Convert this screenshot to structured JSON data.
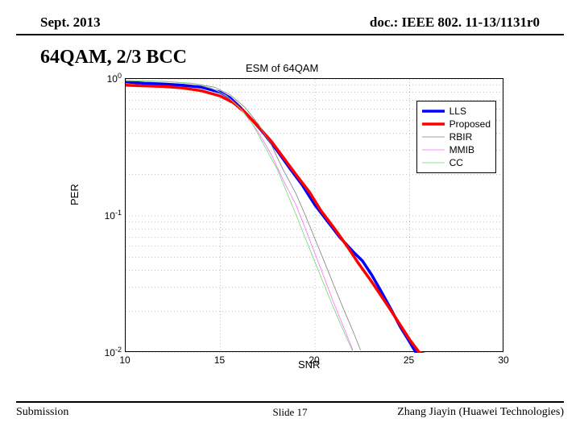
{
  "header": {
    "left": "Sept. 2013",
    "right": "doc.: IEEE 802. 11-13/1131r0"
  },
  "title": "64QAM, 2/3 BCC",
  "chart": {
    "type": "line",
    "title": "ESM of 64QAM",
    "xlabel": "SNR",
    "ylabel": "PER",
    "xlim": [
      10,
      30
    ],
    "ylim_exp": [
      -2,
      0
    ],
    "xticks": [
      10,
      15,
      20,
      25,
      30
    ],
    "ytick_exp": [
      0,
      -1,
      -2
    ],
    "background_color": "#ffffff",
    "grid_color": "#000000",
    "series": [
      {
        "name": "LLS",
        "color": "#0000ff",
        "width": 3.5,
        "data": [
          [
            10,
            0.95
          ],
          [
            11,
            0.93
          ],
          [
            12,
            0.92
          ],
          [
            13,
            0.9
          ],
          [
            14,
            0.87
          ],
          [
            15,
            0.8
          ],
          [
            15.5,
            0.73
          ],
          [
            16,
            0.63
          ],
          [
            16.7,
            0.5
          ],
          [
            17.3,
            0.4
          ],
          [
            18,
            0.3
          ],
          [
            18.7,
            0.22
          ],
          [
            19.3,
            0.17
          ],
          [
            20,
            0.12
          ],
          [
            20.7,
            0.09
          ],
          [
            21.3,
            0.07
          ],
          [
            22,
            0.055
          ],
          [
            22.5,
            0.047
          ],
          [
            23,
            0.037
          ],
          [
            23.5,
            0.028
          ],
          [
            24,
            0.021
          ],
          [
            24.5,
            0.0155
          ],
          [
            25,
            0.012
          ],
          [
            25.3,
            0.0102
          ],
          [
            25.7,
            0.0095
          ]
        ]
      },
      {
        "name": "Proposed",
        "color": "#ff0000",
        "width": 3.5,
        "data": [
          [
            10,
            0.9
          ],
          [
            11,
            0.89
          ],
          [
            12,
            0.88
          ],
          [
            13,
            0.86
          ],
          [
            14,
            0.82
          ],
          [
            15,
            0.75
          ],
          [
            15.7,
            0.67
          ],
          [
            16.3,
            0.57
          ],
          [
            17,
            0.45
          ],
          [
            17.7,
            0.35
          ],
          [
            18.3,
            0.27
          ],
          [
            19,
            0.2
          ],
          [
            19.7,
            0.15
          ],
          [
            20.3,
            0.11
          ],
          [
            21,
            0.082
          ],
          [
            21.7,
            0.06
          ],
          [
            22.3,
            0.045
          ],
          [
            23,
            0.033
          ],
          [
            23.5,
            0.026
          ],
          [
            24,
            0.0205
          ],
          [
            24.5,
            0.016
          ],
          [
            25,
            0.0125
          ],
          [
            25.5,
            0.0101
          ],
          [
            26,
            0.0096
          ]
        ]
      },
      {
        "name": "RBIR",
        "color": "#808080",
        "width": 0.8,
        "data": [
          [
            10,
            0.97
          ],
          [
            12,
            0.96
          ],
          [
            13.5,
            0.93
          ],
          [
            14.7,
            0.87
          ],
          [
            15.5,
            0.77
          ],
          [
            16.3,
            0.62
          ],
          [
            17,
            0.47
          ],
          [
            17.7,
            0.33
          ],
          [
            18.3,
            0.22
          ],
          [
            19,
            0.145
          ],
          [
            19.5,
            0.1
          ],
          [
            20,
            0.068
          ],
          [
            20.5,
            0.046
          ],
          [
            21,
            0.031
          ],
          [
            21.5,
            0.021
          ],
          [
            22,
            0.0145
          ],
          [
            22.4,
            0.0105
          ]
        ]
      },
      {
        "name": "MMIB",
        "color": "#ff66ff",
        "width": 0.8,
        "data": [
          [
            10,
            0.97
          ],
          [
            12,
            0.96
          ],
          [
            13.7,
            0.92
          ],
          [
            14.8,
            0.83
          ],
          [
            15.5,
            0.72
          ],
          [
            16.2,
            0.58
          ],
          [
            17,
            0.41
          ],
          [
            17.7,
            0.28
          ],
          [
            18.3,
            0.185
          ],
          [
            19,
            0.12
          ],
          [
            19.5,
            0.08
          ],
          [
            20,
            0.053
          ],
          [
            20.5,
            0.035
          ],
          [
            21,
            0.023
          ],
          [
            21.5,
            0.0155
          ],
          [
            22,
            0.0105
          ]
        ]
      },
      {
        "name": "CC",
        "color": "#66dd66",
        "width": 0.8,
        "data": [
          [
            10,
            0.97
          ],
          [
            12,
            0.96
          ],
          [
            13.5,
            0.93
          ],
          [
            14.5,
            0.86
          ],
          [
            15.3,
            0.76
          ],
          [
            16,
            0.62
          ],
          [
            16.7,
            0.47
          ],
          [
            17.3,
            0.33
          ],
          [
            18,
            0.22
          ],
          [
            18.5,
            0.15
          ],
          [
            19,
            0.102
          ],
          [
            19.5,
            0.068
          ],
          [
            20,
            0.046
          ],
          [
            20.5,
            0.031
          ],
          [
            21,
            0.021
          ],
          [
            21.5,
            0.0145
          ],
          [
            22,
            0.0102
          ]
        ]
      }
    ],
    "legend": {
      "position": "upper-right",
      "items": [
        "LLS",
        "Proposed",
        "RBIR",
        "MMIB",
        "CC"
      ]
    }
  },
  "footer": {
    "left": "Submission",
    "center": "Slide 17",
    "right": "Zhang Jiayin (Huawei Technologies)"
  }
}
